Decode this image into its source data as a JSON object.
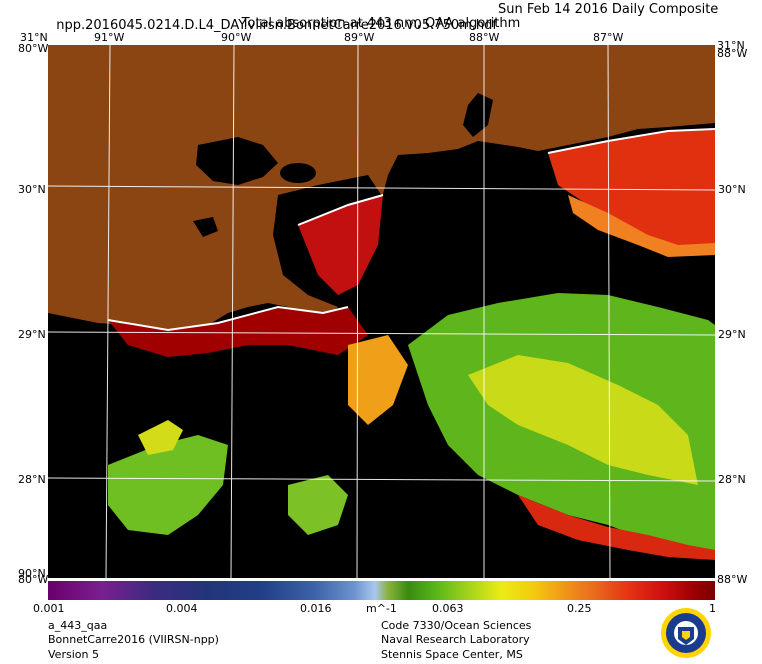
{
  "header": {
    "filename": "npp.2016045.0214.D.L4_DAY.viirsn.BonnetCarre2016.v05.750m.hdf",
    "date": "Sun Feb 14 2016 Daily Composite",
    "product": "Total absorption at 443 nm, QAA algorithm"
  },
  "map": {
    "lon_labels": [
      "91°W",
      "90°W",
      "89°W",
      "88°W",
      "87°W"
    ],
    "lat_labels": [
      "30°N",
      "29°N",
      "28°N"
    ],
    "corner_top_left": "31°N",
    "corner_top_left_lon": "80°W",
    "corner_top_right": "31°N",
    "corner_top_right_lon": "88°W",
    "corner_bottom_left": "90°N",
    "corner_bottom_left_lon": "80°W",
    "corner_bottom_right": "88°W",
    "land_color": "#8b4513",
    "nodata_color": "#000000"
  },
  "colorbar": {
    "ticks": [
      "0.001",
      "0.004",
      "0.016",
      "m^-1",
      "0.063",
      "0.25",
      "1"
    ]
  },
  "footer": {
    "left": [
      "a_443_qaa",
      "BonnetCarre2016 (VIIRSN-npp)",
      "Version 5"
    ],
    "right": [
      "Code 7330/Ocean Sciences",
      "Naval Research Laboratory",
      "Stennis Space Center, MS"
    ]
  },
  "logo": {
    "name": "nrl-seal-icon"
  }
}
